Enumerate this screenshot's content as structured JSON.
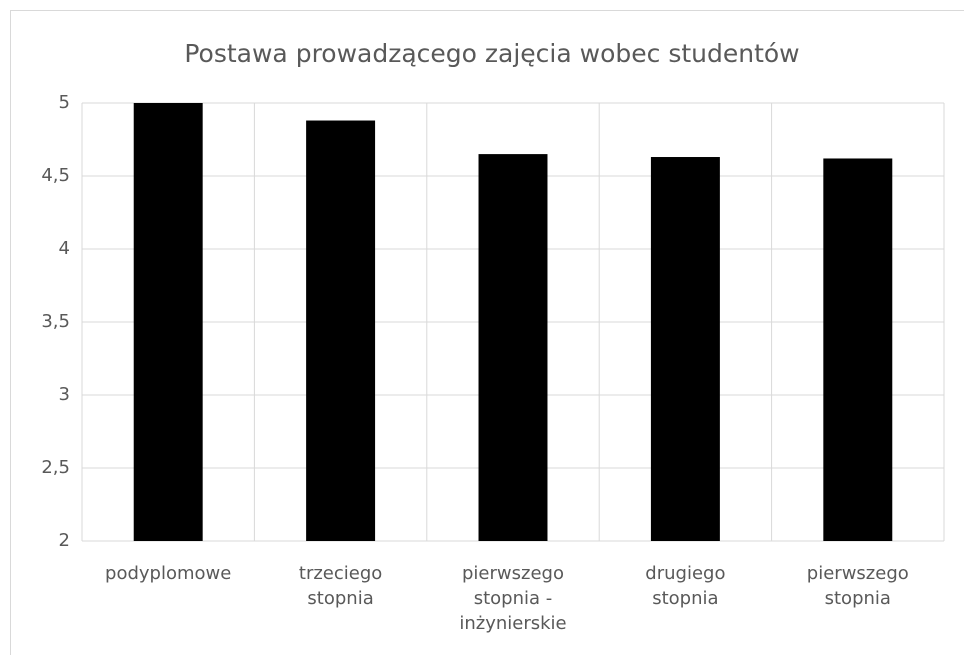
{
  "chart_data": {
    "type": "bar",
    "title": "Postawa prowadzącego zajęcia wobec studentów",
    "categories": [
      "podyplomowe",
      "trzeciego stopnia",
      "pierwszego stopnia - inżynierskie",
      "drugiego stopnia",
      "pierwszego stopnia"
    ],
    "values": [
      5,
      4.88,
      4.65,
      4.63,
      4.62
    ],
    "color": "#000000",
    "ylim": [
      2,
      5
    ],
    "yticks": [
      2,
      {
        "value": 2.5,
        "label": "2,5"
      },
      3,
      {
        "value": 3.5,
        "label": "3,5"
      },
      4,
      {
        "value": 4.5,
        "label": "4,5"
      },
      5
    ],
    "grid": true
  }
}
